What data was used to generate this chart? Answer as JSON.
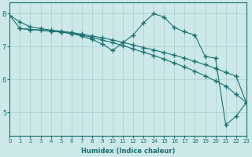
{
  "xlabel": "Humidex (Indice chaleur)",
  "bg_color": "#cce8e8",
  "grid_color": "#aacfcf",
  "line_color": "#1a7070",
  "xlim": [
    0,
    23
  ],
  "ylim": [
    4.3,
    8.35
  ],
  "xticks": [
    0,
    1,
    2,
    3,
    4,
    5,
    6,
    7,
    8,
    9,
    10,
    11,
    12,
    13,
    14,
    15,
    16,
    17,
    18,
    19,
    20,
    21,
    22,
    23
  ],
  "yticks": [
    5,
    6,
    7,
    8
  ],
  "lines": [
    {
      "x": [
        0,
        1,
        2,
        3,
        4,
        5,
        6,
        7,
        8,
        9,
        10,
        11,
        12,
        13,
        14,
        15,
        16,
        17,
        18,
        19,
        20,
        21,
        22,
        23
      ],
      "y": [
        7.95,
        7.75,
        7.6,
        7.55,
        7.5,
        7.47,
        7.43,
        7.38,
        7.32,
        7.27,
        7.2,
        7.13,
        7.05,
        6.97,
        6.9,
        6.82,
        6.74,
        6.65,
        6.55,
        6.45,
        6.34,
        6.22,
        6.1,
        5.3
      ]
    },
    {
      "x": [
        0,
        1,
        2,
        3,
        4,
        5,
        6,
        7,
        8,
        9,
        10,
        11,
        12,
        13,
        14,
        15,
        16,
        17,
        18,
        19,
        20,
        21,
        22,
        23
      ],
      "y": [
        7.95,
        7.55,
        7.52,
        7.5,
        7.47,
        7.44,
        7.4,
        7.35,
        7.28,
        7.2,
        7.12,
        7.03,
        6.93,
        6.83,
        6.73,
        6.62,
        6.5,
        6.38,
        6.25,
        6.11,
        5.96,
        5.8,
        5.55,
        5.3
      ]
    },
    {
      "x": [
        1,
        2,
        3,
        4,
        5,
        6,
        7,
        8,
        9,
        10,
        11,
        12,
        13,
        14,
        15,
        16,
        17,
        18,
        19,
        20,
        21,
        22,
        23
      ],
      "y": [
        7.55,
        7.52,
        7.5,
        7.47,
        7.44,
        7.4,
        7.32,
        7.22,
        7.08,
        6.88,
        7.12,
        7.35,
        7.72,
        8.0,
        7.9,
        7.58,
        7.45,
        7.35,
        6.7,
        6.65,
        4.62,
        4.88,
        5.3
      ]
    }
  ],
  "marker": "+",
  "markersize": 4.0,
  "linewidth": 0.8
}
